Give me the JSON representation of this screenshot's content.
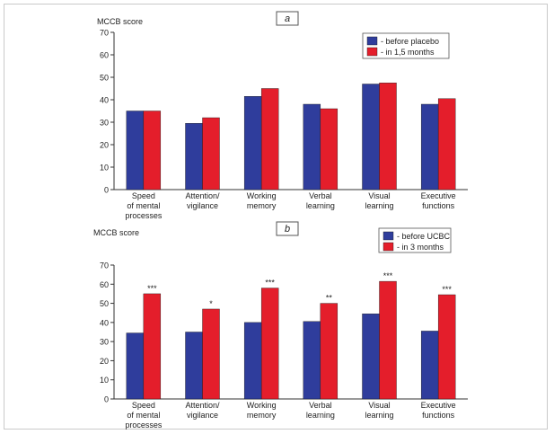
{
  "colors": {
    "before": "#2f3d9c",
    "after": "#e41e2b",
    "axis": "#333333"
  },
  "chart_data": [
    {
      "type": "bar",
      "panel_label": "a",
      "ylabel": "MCCB score",
      "ylim": [
        0,
        70
      ],
      "yticks": [
        "0",
        "10",
        "20",
        "30",
        "40",
        "50",
        "60",
        "70"
      ],
      "categories": [
        [
          "Speed",
          "of mental",
          "processes"
        ],
        [
          "Attention/",
          "vigilance"
        ],
        [
          "Working",
          "memory"
        ],
        [
          "Verbal",
          "learning"
        ],
        [
          "Visual",
          "learning"
        ],
        [
          "Executive",
          "functions"
        ]
      ],
      "series": [
        {
          "name": "- before placebo",
          "values": [
            35,
            29.5,
            41.5,
            38,
            47,
            38
          ]
        },
        {
          "name": "- in 1,5 months",
          "values": [
            35,
            32,
            45,
            36,
            47.5,
            40.5
          ]
        }
      ],
      "significance": [
        "",
        "",
        "",
        "",
        "",
        ""
      ],
      "legend_position": "top-right",
      "grid": false
    },
    {
      "type": "bar",
      "panel_label": "b",
      "ylabel": "MCCB score",
      "ylim": [
        0,
        70
      ],
      "yticks": [
        "0",
        "10",
        "20",
        "30",
        "40",
        "50",
        "60",
        "70"
      ],
      "categories": [
        [
          "Speed",
          "of mental",
          "processes"
        ],
        [
          "Attention/",
          "vigilance"
        ],
        [
          "Working",
          "memory"
        ],
        [
          "Verbal",
          "learning"
        ],
        [
          "Visual",
          "learning"
        ],
        [
          "Executive",
          "functions"
        ]
      ],
      "series": [
        {
          "name": "- before UCBC",
          "values": [
            34.5,
            35,
            40,
            40.5,
            44.5,
            35.5
          ]
        },
        {
          "name": "- in 3 months",
          "values": [
            55,
            47,
            58,
            50,
            61.5,
            54.5
          ]
        }
      ],
      "significance": [
        "***",
        "*",
        "***",
        "**",
        "***",
        "***"
      ],
      "legend_position": "top-right",
      "grid": false
    }
  ]
}
